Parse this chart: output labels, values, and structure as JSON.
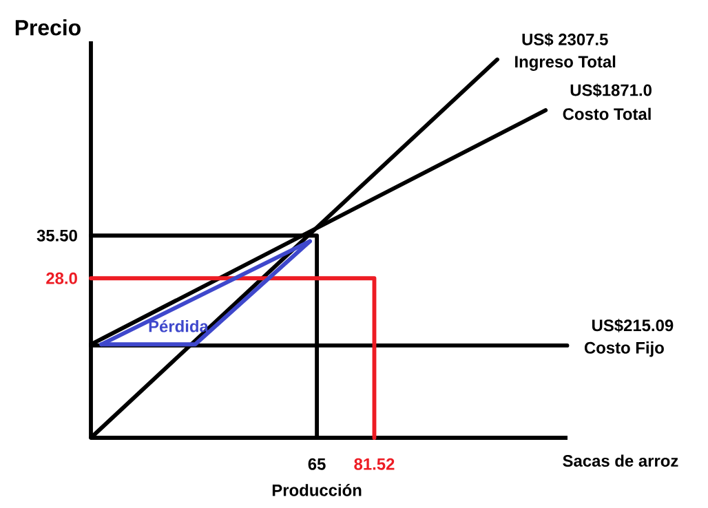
{
  "chart_data": {
    "type": "line",
    "ylabel": "Precio",
    "xlabel": "Producción",
    "xlim": [
      0,
      137.1
    ],
    "ylim": [
      0,
      69.6
    ],
    "xticks": [
      65,
      81.52
    ],
    "yticks": [
      {
        "value": 35.5,
        "label": "35.50"
      },
      {
        "value": 28,
        "label": "28.0"
      }
    ],
    "series": [
      {
        "name": "Ingreso Total",
        "color": "#000000",
        "x": [
          0,
          116.9
        ],
        "values": [
          0,
          66.4
        ]
      },
      {
        "name": "Costo Total",
        "color": "#000000",
        "x": [
          0,
          130.8
        ],
        "values": [
          16.4,
          57.5
        ]
      },
      {
        "name": "Costo Fijo",
        "color": "#000000",
        "x": [
          0,
          137
        ],
        "values": [
          16.2,
          16.2
        ]
      },
      {
        "color": "#000000",
        "x": [
          0,
          65,
          65
        ],
        "values": [
          35.5,
          35.5,
          0
        ]
      },
      {
        "color": "#ed1c24",
        "x": [
          0,
          81.52,
          81.52
        ],
        "values": [
          28,
          28,
          0
        ]
      },
      {
        "name": "Pérdida",
        "color": "#3f48cc",
        "x": [
          3,
          30,
          63
        ],
        "values": [
          16.4,
          16.4,
          34.5
        ]
      },
      {
        "color": "#3f48cc",
        "x": [
          3,
          63
        ],
        "values": [
          16.4,
          34.5
        ]
      }
    ],
    "annotations": [
      {
        "text": "US$ 2307.5",
        "x": 116.9,
        "y": 66.4
      },
      {
        "text": "US$1871.0",
        "x": 130.8,
        "y": 57.5
      },
      {
        "text": "US$215.09",
        "x": 137,
        "y": 16.2
      },
      "Sacas de arroz"
    ],
    "marker": "none",
    "line_style": "solid",
    "grid": false,
    "legend": false
  }
}
